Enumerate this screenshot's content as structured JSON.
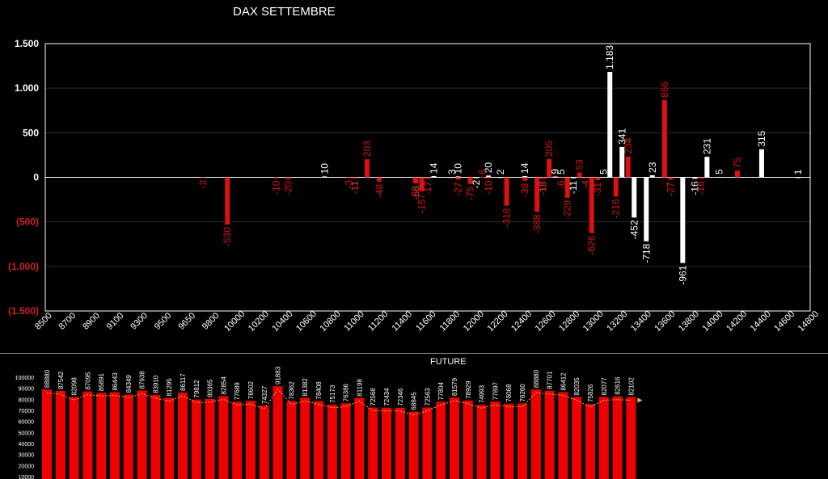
{
  "chart_data": [
    {
      "type": "bar",
      "title": "DAX SETTEMBRE",
      "ylim": [
        -1500,
        1500
      ],
      "y_tick_labels": [
        "1.500",
        "1.000",
        "500",
        "0",
        "(500)",
        "(1.000)",
        "(1.500)"
      ],
      "y_tick_values": [
        1500,
        1000,
        500,
        0,
        -500,
        -1000,
        -1500
      ],
      "x_tick_labels": [
        "8500",
        "8700",
        "8900",
        "9100",
        "9300",
        "9500",
        "9650",
        "9800",
        "10000",
        "10200",
        "10400",
        "10600",
        "10800",
        "11000",
        "11200",
        "11400",
        "11600",
        "11800",
        "12000",
        "12200",
        "12400",
        "12600",
        "12800",
        "13000",
        "13200",
        "13400",
        "13600",
        "13800",
        "14000",
        "14200",
        "14400",
        "14600",
        "14800"
      ],
      "xlim": [
        8500,
        14800
      ],
      "grid": true,
      "colors": {
        "white_series": "#ffffff",
        "red_series": "#dd1111",
        "negative_tick": "#cc2222"
      },
      "series": [
        {
          "color": "red",
          "points": [
            [
              9800,
              -2
            ],
            [
              10000,
              -530
            ],
            [
              10400,
              -10
            ],
            [
              10500,
              -20
            ],
            [
              11000,
              -3
            ],
            [
              11050,
              -11
            ],
            [
              11150,
              203
            ],
            [
              11250,
              -48
            ],
            [
              11550,
              -68
            ],
            [
              11600,
              -157
            ],
            [
              11650,
              -17
            ],
            [
              11900,
              -27
            ],
            [
              12000,
              -75
            ],
            [
              12100,
              6
            ],
            [
              12150,
              -10
            ],
            [
              12300,
              -318
            ],
            [
              12450,
              -38
            ],
            [
              12550,
              -388
            ],
            [
              12600,
              -18
            ],
            [
              12650,
              205
            ],
            [
              12750,
              -6
            ],
            [
              12800,
              -229
            ],
            [
              12900,
              53
            ],
            [
              12950,
              -4
            ],
            [
              13000,
              -626
            ],
            [
              13050,
              -31
            ],
            [
              13200,
              -216
            ],
            [
              13300,
              234
            ],
            [
              13600,
              866
            ],
            [
              13650,
              -27
            ],
            [
              13900,
              -16
            ],
            [
              14200,
              75
            ]
          ]
        },
        {
          "color": "white",
          "points": [
            [
              10800,
              10
            ],
            [
              11050,
              -11
            ],
            [
              11550,
              -68
            ],
            [
              11700,
              14
            ],
            [
              11850,
              3
            ],
            [
              11900,
              10
            ],
            [
              12050,
              -2
            ],
            [
              12150,
              20
            ],
            [
              12250,
              2
            ],
            [
              12450,
              14
            ],
            [
              12600,
              -18
            ],
            [
              12700,
              9
            ],
            [
              12750,
              5
            ],
            [
              12850,
              -11
            ],
            [
              13100,
              5
            ],
            [
              13150,
              1183
            ],
            [
              13250,
              341
            ],
            [
              13350,
              -452
            ],
            [
              13450,
              -718
            ],
            [
              13500,
              23
            ],
            [
              13750,
              -961
            ],
            [
              13850,
              -16
            ],
            [
              13950,
              231
            ],
            [
              14050,
              5
            ],
            [
              14400,
              315
            ],
            [
              14700,
              1
            ]
          ]
        }
      ]
    },
    {
      "type": "bar",
      "title": "FUTURE",
      "ylim": [
        10000,
        100000
      ],
      "y_tick_labels": [
        "100000",
        "90000",
        "80000",
        "70000",
        "60000",
        "50000",
        "40000",
        "30000",
        "20000",
        "10000"
      ],
      "y_tick_values": [
        100000,
        90000,
        80000,
        70000,
        60000,
        50000,
        40000,
        30000,
        20000,
        10000
      ],
      "colors": {
        "bar": "#ee0000",
        "trend": "#e8c04a"
      },
      "values": [
        88880,
        87542,
        82098,
        87095,
        85891,
        86443,
        84349,
        87938,
        83910,
        81295,
        86117,
        79812,
        80365,
        82854,
        77689,
        78602,
        74327,
        91883,
        78362,
        81382,
        78408,
        75173,
        76386,
        81198,
        72568,
        72434,
        72346,
        68845,
        72563,
        77804,
        81579,
        78929,
        74993,
        77897,
        76068,
        76260,
        88880,
        87701,
        86412,
        82035,
        75826,
        82077,
        82616,
        82102
      ]
    }
  ]
}
